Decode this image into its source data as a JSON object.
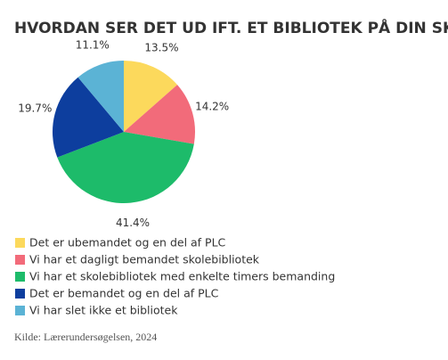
{
  "chart_data": {
    "type": "pie",
    "title": "HVORDAN SER DET UD IFT. ET BIBLIOTEK PÅ DIN SKOLE?",
    "categories": [
      "Det er ubemandet og en del af PLC",
      "Vi har et dagligt bemandet skolebibliotek",
      "Vi har et skolebibliotek med enkelte timers bemanding",
      "Det er bemandet og en del af PLC",
      "Vi har slet ikke et bibliotek"
    ],
    "values": [
      13.5,
      14.2,
      41.4,
      19.7,
      11.1
    ],
    "value_labels": [
      "13.5%",
      "14.2%",
      "41.4%",
      "19.7%",
      "11.1%"
    ],
    "colors": [
      "#fcd95c",
      "#f26b7a",
      "#1dbb6a",
      "#0d3e9e",
      "#5bb3d5"
    ],
    "source": "Kilde: Lærerundersøgelsen, 2024"
  }
}
